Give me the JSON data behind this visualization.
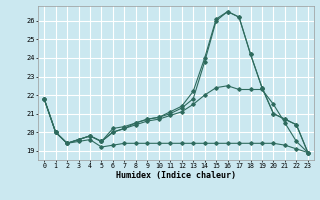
{
  "xlabel": "Humidex (Indice chaleur)",
  "bg_color": "#cbe8f0",
  "grid_color": "#ffffff",
  "grid_minor_color": "#dff0f5",
  "line_color": "#2e6b5e",
  "xlim": [
    -0.5,
    23.5
  ],
  "ylim": [
    18.5,
    26.8
  ],
  "xticks": [
    0,
    1,
    2,
    3,
    4,
    5,
    6,
    7,
    8,
    9,
    10,
    11,
    12,
    13,
    14,
    15,
    16,
    17,
    18,
    19,
    20,
    21,
    22,
    23
  ],
  "yticks": [
    19,
    20,
    21,
    22,
    23,
    24,
    25,
    26
  ],
  "line1_x": [
    0,
    1,
    2,
    3,
    4,
    5,
    6,
    7,
    8,
    9,
    10,
    11,
    12,
    13,
    14,
    15,
    16,
    17,
    18,
    19,
    20,
    21,
    22,
    23
  ],
  "line1_y": [
    21.8,
    20.0,
    19.4,
    19.5,
    19.6,
    19.2,
    19.3,
    19.4,
    19.4,
    19.4,
    19.4,
    19.4,
    19.4,
    19.4,
    19.4,
    19.4,
    19.4,
    19.4,
    19.4,
    19.4,
    19.4,
    19.3,
    19.1,
    18.9
  ],
  "line2_x": [
    0,
    1,
    2,
    3,
    4,
    5,
    6,
    7,
    8,
    9,
    10,
    11,
    12,
    13,
    14,
    15,
    16,
    17,
    18,
    19,
    20,
    21,
    22,
    23
  ],
  "line2_y": [
    21.8,
    20.0,
    19.4,
    19.6,
    19.8,
    19.5,
    20.0,
    20.2,
    20.4,
    20.6,
    20.7,
    20.9,
    21.1,
    21.5,
    22.0,
    22.4,
    22.5,
    22.3,
    22.3,
    22.3,
    21.5,
    20.5,
    19.5,
    18.9
  ],
  "line3_x": [
    0,
    1,
    2,
    3,
    4,
    5,
    6,
    7,
    8,
    9,
    10,
    11,
    12,
    13,
    14,
    15,
    16,
    17,
    18,
    19,
    20,
    21,
    22,
    23
  ],
  "line3_y": [
    21.8,
    20.0,
    19.4,
    19.6,
    19.8,
    19.5,
    20.0,
    20.2,
    20.5,
    20.7,
    20.8,
    21.0,
    21.3,
    21.8,
    23.8,
    26.0,
    26.5,
    26.2,
    24.2,
    22.4,
    21.0,
    20.7,
    20.4,
    18.9
  ],
  "line4_x": [
    0,
    1,
    2,
    3,
    4,
    5,
    6,
    7,
    8,
    9,
    10,
    11,
    12,
    13,
    14,
    15,
    16,
    17,
    18,
    19,
    20,
    21,
    22,
    23
  ],
  "line4_y": [
    21.8,
    20.0,
    19.4,
    19.6,
    19.8,
    19.5,
    20.2,
    20.3,
    20.5,
    20.7,
    20.8,
    21.1,
    21.4,
    22.2,
    24.0,
    26.1,
    26.5,
    26.2,
    24.2,
    22.4,
    21.0,
    20.7,
    20.4,
    18.9
  ]
}
